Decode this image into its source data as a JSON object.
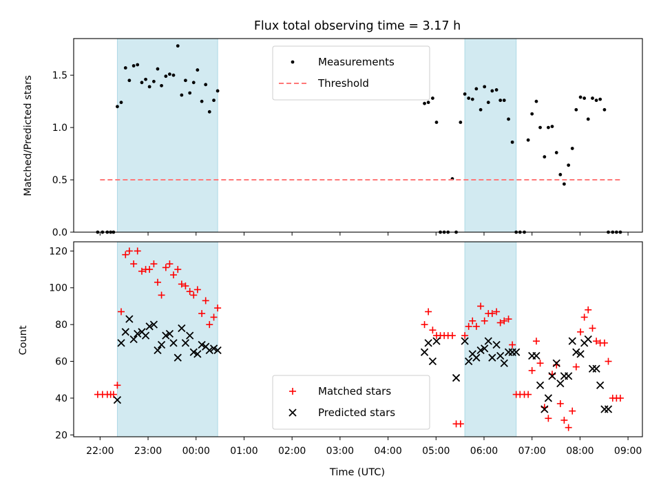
{
  "chart_data": {
    "title": "Flux total observing time = 3.17 h",
    "xlabel": "Time (UTC)",
    "x_unit": "hours since 22:00 UTC (22:00 = 0)",
    "xlim": [
      -0.55,
      11.3
    ],
    "x_ticks": [
      {
        "x": 0,
        "label": "22:00"
      },
      {
        "x": 1,
        "label": "23:00"
      },
      {
        "x": 2,
        "label": "00:00"
      },
      {
        "x": 3,
        "label": "01:00"
      },
      {
        "x": 4,
        "label": "02:00"
      },
      {
        "x": 5,
        "label": "03:00"
      },
      {
        "x": 6,
        "label": "04:00"
      },
      {
        "x": 7,
        "label": "05:00"
      },
      {
        "x": 8,
        "label": "06:00"
      },
      {
        "x": 9,
        "label": "07:00"
      },
      {
        "x": 10,
        "label": "08:00"
      },
      {
        "x": 11,
        "label": "09:00"
      }
    ],
    "shaded_intervals": [
      [
        0.36,
        2.45
      ],
      [
        7.6,
        8.67
      ]
    ],
    "shade_color": "#add8e6",
    "panels": [
      {
        "type": "scatter",
        "ylabel": "Matched/Predicted stars",
        "ylim": [
          0,
          1.85
        ],
        "y_ticks": [
          0,
          0.5,
          1.0,
          1.5
        ],
        "y_tick_labels": [
          "0.0",
          "0.5",
          "1.0",
          "1.5"
        ],
        "legend_position": "top-center",
        "series": [
          {
            "name": "Measurements",
            "kind": "dots",
            "color": "#000000",
            "x": [
              -0.05,
              0.05,
              0.15,
              0.22,
              0.28,
              0.36,
              0.44,
              0.53,
              0.61,
              0.7,
              0.78,
              0.87,
              0.95,
              1.03,
              1.12,
              1.2,
              1.28,
              1.37,
              1.45,
              1.53,
              1.62,
              1.7,
              1.78,
              1.87,
              1.95,
              2.03,
              2.12,
              2.2,
              2.28,
              2.37,
              2.45,
              6.76,
              6.84,
              6.93,
              7.01,
              7.09,
              7.17,
              7.25,
              7.34,
              7.42,
              7.51,
              7.6,
              7.68,
              7.76,
              7.84,
              7.93,
              8.01,
              8.09,
              8.17,
              8.26,
              8.34,
              8.42,
              8.51,
              8.59,
              8.67,
              8.75,
              8.84,
              8.92,
              9.0,
              9.09,
              9.17,
              9.26,
              9.34,
              9.42,
              9.51,
              9.59,
              9.67,
              9.76,
              9.84,
              9.92,
              10.01,
              10.09,
              10.17,
              10.26,
              10.34,
              10.42,
              10.51,
              10.59,
              10.68,
              10.76,
              10.84
            ],
            "y": [
              0,
              0,
              0,
              0,
              0,
              1.2,
              1.24,
              1.57,
              1.45,
              1.59,
              1.6,
              1.43,
              1.46,
              1.39,
              1.44,
              1.56,
              1.4,
              1.49,
              1.51,
              1.5,
              1.78,
              1.31,
              1.45,
              1.33,
              1.43,
              1.55,
              1.25,
              1.41,
              1.15,
              1.26,
              1.35,
              1.23,
              1.24,
              1.28,
              1.05,
              0,
              0,
              0,
              0.51,
              0,
              1.05,
              1.32,
              1.28,
              1.27,
              1.37,
              1.17,
              1.39,
              1.24,
              1.35,
              1.36,
              1.26,
              1.26,
              1.08,
              0.86,
              0,
              0,
              0,
              0.88,
              1.13,
              1.25,
              1.0,
              0.72,
              1.0,
              1.01,
              0.76,
              0.55,
              0.46,
              0.64,
              0.8,
              1.17,
              1.29,
              1.28,
              1.08,
              1.28,
              1.26,
              1.27,
              1.17,
              0,
              0,
              0,
              0
            ]
          },
          {
            "name": "Threshold",
            "kind": "dashed-line",
            "color": "#ff7777",
            "x": [
              0,
              10.85
            ],
            "y": [
              0.5,
              0.5
            ]
          }
        ]
      },
      {
        "type": "scatter",
        "ylabel": "Count",
        "ylim": [
          19,
          125
        ],
        "y_ticks": [
          20,
          40,
          60,
          80,
          100,
          120
        ],
        "y_tick_labels": [
          "20",
          "40",
          "60",
          "80",
          "100",
          "120"
        ],
        "legend_position": "bottom-center",
        "series": [
          {
            "name": "Matched stars",
            "kind": "plus",
            "color": "#ff0000",
            "x": [
              -0.05,
              0.05,
              0.15,
              0.22,
              0.28,
              0.36,
              0.44,
              0.53,
              0.61,
              0.7,
              0.78,
              0.87,
              0.95,
              1.03,
              1.12,
              1.2,
              1.28,
              1.37,
              1.45,
              1.53,
              1.62,
              1.7,
              1.78,
              1.87,
              1.95,
              2.03,
              2.12,
              2.2,
              2.28,
              2.37,
              2.45,
              6.76,
              6.84,
              6.93,
              7.01,
              7.09,
              7.17,
              7.25,
              7.34,
              7.42,
              7.51,
              7.6,
              7.68,
              7.76,
              7.84,
              7.93,
              8.01,
              8.09,
              8.17,
              8.26,
              8.34,
              8.42,
              8.51,
              8.59,
              8.67,
              8.75,
              8.84,
              8.92,
              9.0,
              9.09,
              9.17,
              9.26,
              9.34,
              9.42,
              9.51,
              9.59,
              9.67,
              9.76,
              9.84,
              9.92,
              10.01,
              10.09,
              10.17,
              10.26,
              10.34,
              10.42,
              10.51,
              10.59,
              10.68,
              10.76,
              10.84
            ],
            "y": [
              42,
              42,
              42,
              42,
              42,
              47,
              87,
              118,
              120,
              113,
              120,
              109,
              110,
              110,
              113,
              103,
              96,
              111,
              113,
              107,
              110,
              102,
              101,
              98,
              96,
              99,
              86,
              93,
              80,
              84,
              89,
              80,
              87,
              77,
              74,
              74,
              74,
              74,
              74,
              26,
              26,
              74,
              79,
              82,
              79,
              90,
              82,
              86,
              86,
              87,
              81,
              82,
              83,
              69,
              42,
              42,
              42,
              42,
              55,
              71,
              59,
              35,
              29,
              53,
              58,
              37,
              28,
              24,
              33,
              57,
              76,
              84,
              88,
              78,
              71,
              70,
              70,
              60,
              40,
              40,
              40
            ]
          },
          {
            "name": "Predicted stars",
            "kind": "x",
            "color": "#000000",
            "x": [
              0.36,
              0.44,
              0.53,
              0.61,
              0.7,
              0.78,
              0.87,
              0.95,
              1.03,
              1.12,
              1.2,
              1.28,
              1.37,
              1.45,
              1.53,
              1.62,
              1.7,
              1.78,
              1.87,
              1.95,
              2.03,
              2.12,
              2.2,
              2.28,
              2.37,
              2.45,
              6.76,
              6.84,
              6.93,
              7.01,
              7.42,
              7.6,
              7.68,
              7.76,
              7.84,
              7.93,
              8.01,
              8.09,
              8.17,
              8.26,
              8.34,
              8.42,
              8.51,
              8.59,
              8.67,
              9.0,
              9.09,
              9.17,
              9.26,
              9.34,
              9.42,
              9.51,
              9.59,
              9.67,
              9.76,
              9.84,
              9.92,
              10.01,
              10.09,
              10.17,
              10.26,
              10.34,
              10.42,
              10.51,
              10.59
            ],
            "y": [
              39,
              70,
              76,
              83,
              72,
              75,
              76,
              74,
              79,
              80,
              66,
              69,
              74,
              75,
              70,
              62,
              78,
              70,
              74,
              65,
              64,
              69,
              68,
              66,
              67,
              66,
              65,
              70,
              60,
              71,
              51,
              71,
              60,
              64,
              62,
              66,
              67,
              71,
              62,
              69,
              63,
              59,
              65,
              65,
              65,
              63,
              63,
              47,
              34,
              40,
              52,
              59,
              48,
              52,
              52,
              71,
              65,
              64,
              70,
              72,
              56,
              56,
              47,
              34,
              34
            ]
          }
        ]
      }
    ]
  }
}
